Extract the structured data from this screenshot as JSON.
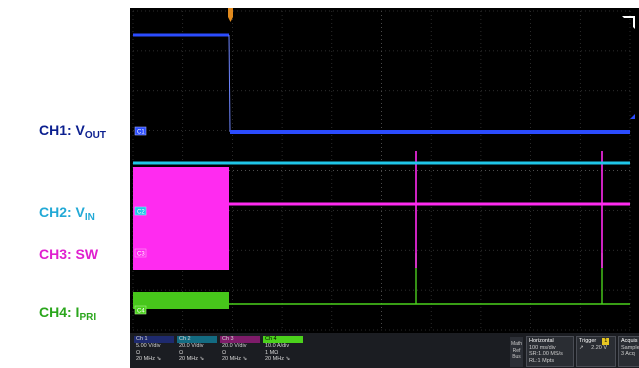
{
  "side_labels": [
    {
      "main": "CH1: V",
      "sub": "OUT",
      "color": "#0b1f8f"
    },
    {
      "main": "CH2: V",
      "sub": "IN",
      "color": "#22a9d6"
    },
    {
      "main": "CH3: SW",
      "sub": "",
      "color": "#e01fcf"
    },
    {
      "main": "CH4: I",
      "sub": "PRI",
      "color": "#2aa61c"
    }
  ],
  "channel_markers": [
    "C1",
    "C2",
    "C3",
    "C4"
  ],
  "channels": [
    {
      "tab": "Ch 1",
      "lines": [
        "5.00 V/div",
        "Ω",
        "20 MHz ⇘"
      ],
      "color": "#2b4cff"
    },
    {
      "tab": "Ch 2",
      "lines": [
        "20.0 V/div",
        "Ω",
        "20 MHz ⇘"
      ],
      "color": "#1fc6e8"
    },
    {
      "tab": "Ch 3",
      "lines": [
        "20.0 V/div",
        "Ω",
        "20 MHz ⇘"
      ],
      "color": "#ff2bf0"
    },
    {
      "tab": "Ch 4",
      "lines": [
        "10.0 A/div",
        "1 MΩ",
        "20 MHz ⇘"
      ],
      "color": "#4bd11c"
    }
  ],
  "math_ref_bus": [
    "Math",
    "Ref",
    "Bus"
  ],
  "horizontal": {
    "title": "Horizontal",
    "lines": [
      "100 ms/div",
      "SR:1.00 MS/s",
      "RL:1 Mpts"
    ]
  },
  "trigger": {
    "title": "Trigger",
    "number": "1",
    "line": "2.20 V"
  },
  "acquisition": {
    "title": "Acquis",
    "lines": [
      "Sample",
      "3 Acq"
    ]
  },
  "colors": {
    "ch1": "#2b4cff",
    "ch2": "#1fc6e8",
    "ch3": "#ff2bf0",
    "ch4": "#4bd11c",
    "trigger_marker": "#e08a1e",
    "background": "#000000"
  }
}
